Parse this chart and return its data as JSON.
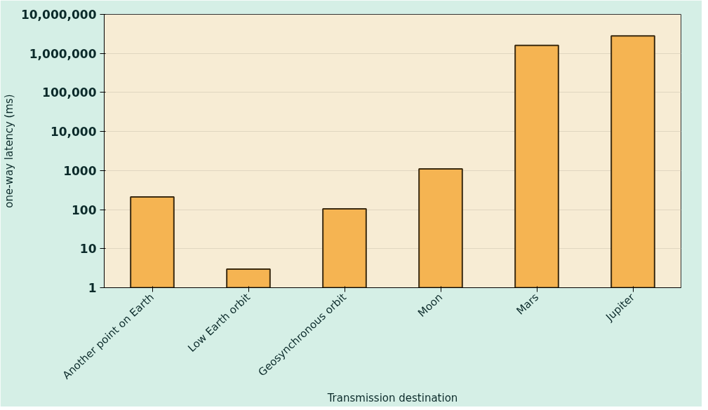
{
  "chart_data": {
    "type": "bar",
    "xlabel": "Transmission destination",
    "ylabel": "one-way latency (ms)",
    "categories": [
      "Another point on Earth",
      "Low Earth orbit",
      "Geosynchronous orbit",
      "Moon",
      "Mars",
      "Jupiter"
    ],
    "values": [
      210,
      3,
      105,
      1100,
      1600000,
      2800000
    ],
    "color": "#f5b452",
    "log": true,
    "ylim": [
      1,
      10000000
    ],
    "yticks": [
      1,
      10,
      100,
      {
        "value": 1000,
        "label": "1000"
      },
      {
        "value": 10000,
        "label": "10,000"
      },
      {
        "value": 100000,
        "label": "100,000"
      },
      {
        "value": 1000000,
        "label": "1,000,000"
      },
      {
        "value": 10000000,
        "label": "10,000,000"
      }
    ],
    "grid": "y"
  }
}
